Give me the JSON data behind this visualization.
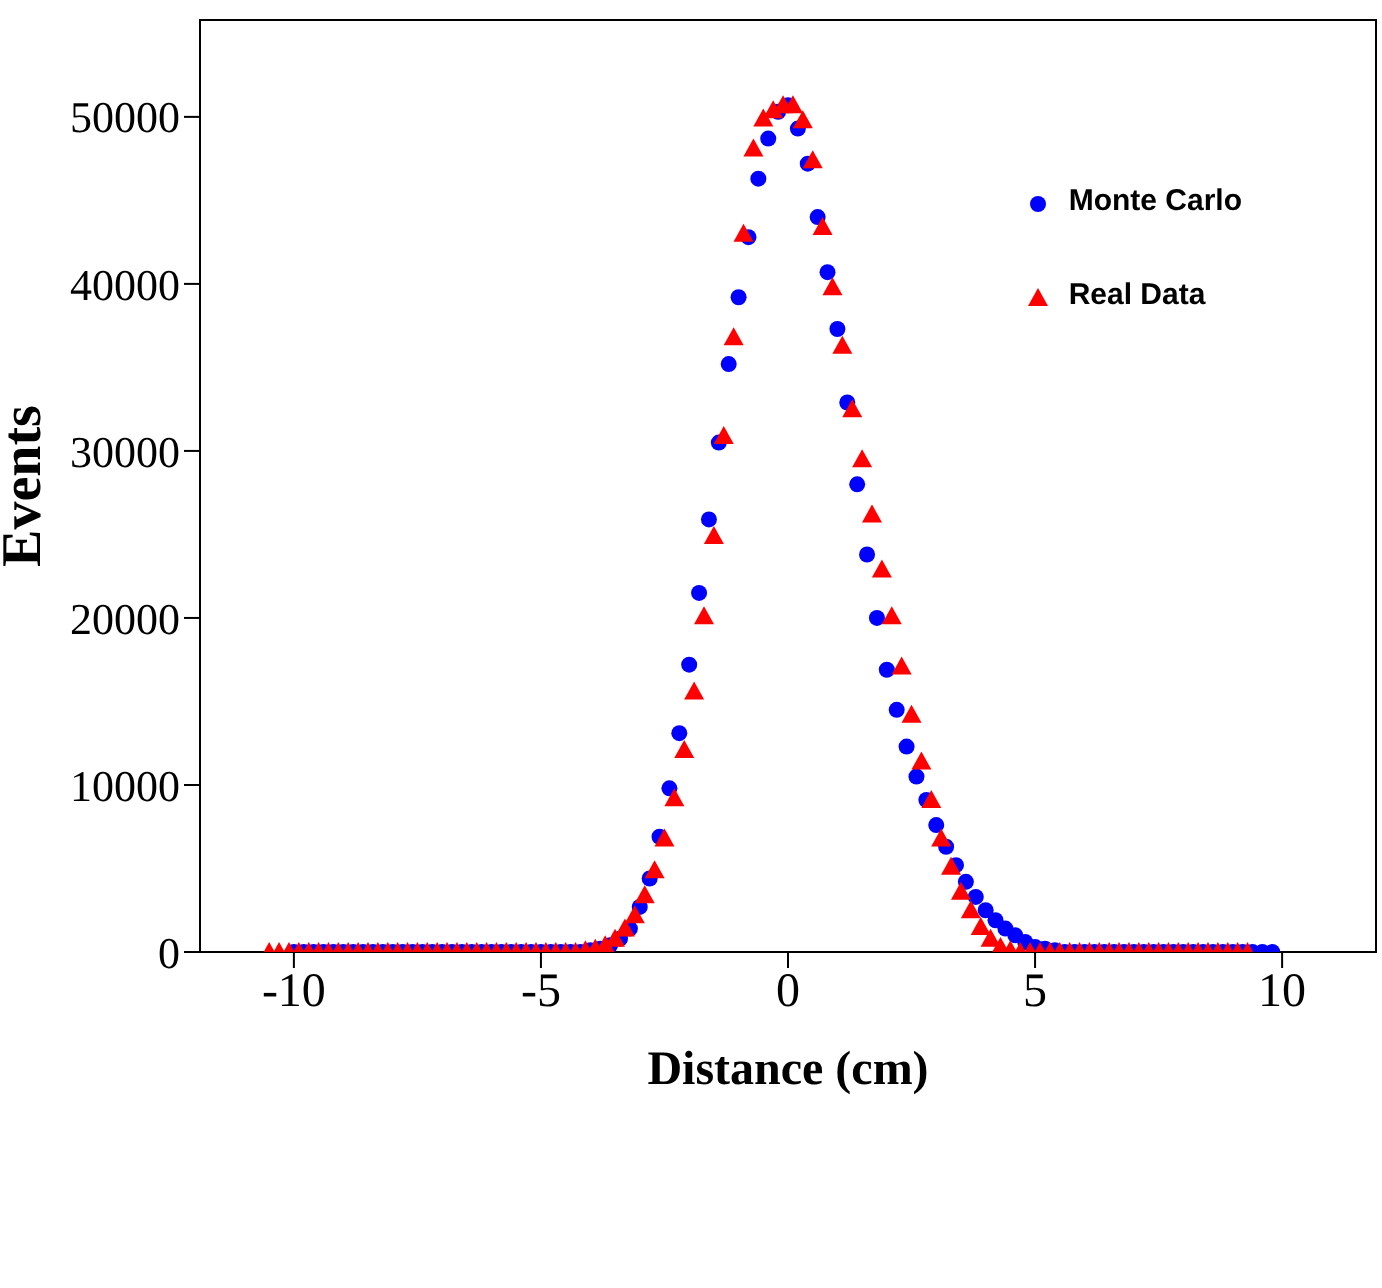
{
  "chart_data": {
    "type": "scatter",
    "xlabel": "Distance  (cm)",
    "ylabel": "Events",
    "xlim": [
      -11.9,
      11.9
    ],
    "xticks": [
      -10,
      -5,
      0,
      5,
      10
    ],
    "ylim": [
      0,
      55800
    ],
    "yticks": [
      0,
      10000,
      20000,
      30000,
      40000,
      50000
    ],
    "grid": false,
    "legend": "top right",
    "series": [
      {
        "name": "Monte Carlo",
        "color": "#0000ff",
        "marker": "circle",
        "x": [
          -10,
          -9.8,
          -9.6,
          -9.4,
          -9.2,
          -9,
          -8.8,
          -8.6,
          -8.4,
          -8.2,
          -8,
          -7.8,
          -7.6,
          -7.4,
          -7.2,
          -7,
          -6.8,
          -6.6,
          -6.4,
          -6.2,
          -6,
          -5.8,
          -5.6,
          -5.4,
          -5.2,
          -5,
          -4.8,
          -4.6,
          -4.4,
          -4.2,
          -4,
          -3.8,
          -3.6,
          -3.4,
          -3.2,
          -3,
          -2.8,
          -2.6,
          -2.4,
          -2.2,
          -2,
          -1.8,
          -1.6,
          -1.4,
          -1.2,
          -1,
          -0.8,
          -0.6,
          -0.4,
          -0.2,
          0,
          0.2,
          0.4,
          0.6,
          0.8,
          1,
          1.2,
          1.4,
          1.6,
          1.8,
          2,
          2.2,
          2.4,
          2.6,
          2.8,
          3,
          3.2,
          3.4,
          3.6,
          3.8,
          4,
          4.2,
          4.4,
          4.6,
          4.8,
          5,
          5.2,
          5.4,
          5.6,
          5.8,
          6,
          6.2,
          6.4,
          6.6,
          6.8,
          7,
          7.2,
          7.4,
          7.6,
          7.8,
          8,
          8.2,
          8.4,
          8.6,
          8.8,
          9,
          9.2,
          9.4,
          9.6,
          9.8
        ],
        "values": [
          0,
          0,
          0,
          0,
          0,
          0,
          0,
          0,
          0,
          0,
          0,
          0,
          0,
          0,
          0,
          0,
          0,
          0,
          0,
          0,
          0,
          0,
          0,
          0,
          0,
          0,
          0,
          0,
          0,
          0,
          100,
          200,
          400,
          800,
          1400,
          2700,
          4400,
          6900,
          9800,
          13100,
          17200,
          21500,
          25900,
          30500,
          35200,
          39200,
          42800,
          46300,
          48700,
          50300,
          50700,
          49300,
          47200,
          44000,
          40700,
          37300,
          32900,
          28000,
          23800,
          20000,
          16900,
          14500,
          12300,
          10500,
          9100,
          7600,
          6300,
          5200,
          4200,
          3300,
          2500,
          1900,
          1400,
          1000,
          600,
          300,
          200,
          100,
          0,
          0,
          0,
          0,
          0,
          0,
          0,
          0,
          0,
          0,
          0,
          0,
          0,
          0,
          0,
          0,
          0,
          0,
          0,
          0,
          0,
          0
        ]
      },
      {
        "name": "Real Data",
        "color": "#ff0000",
        "marker": "triangle",
        "x": [
          -10.5,
          -10.3,
          -10.1,
          -9.9,
          -9.7,
          -9.5,
          -9.3,
          -9.1,
          -8.9,
          -8.7,
          -8.5,
          -8.3,
          -8.1,
          -7.9,
          -7.7,
          -7.5,
          -7.3,
          -7.1,
          -6.9,
          -6.7,
          -6.5,
          -6.3,
          -6.1,
          -5.9,
          -5.7,
          -5.5,
          -5.3,
          -5.1,
          -4.9,
          -4.7,
          -4.5,
          -4.3,
          -4.1,
          -3.9,
          -3.7,
          -3.5,
          -3.3,
          -3.1,
          -2.9,
          -2.7,
          -2.5,
          -2.3,
          -2.1,
          -1.9,
          -1.7,
          -1.5,
          -1.3,
          -1.1,
          -0.9,
          -0.7,
          -0.5,
          -0.3,
          -0.1,
          0.1,
          0.3,
          0.5,
          0.7,
          0.9,
          1.1,
          1.3,
          1.5,
          1.7,
          1.9,
          2.1,
          2.3,
          2.5,
          2.7,
          2.9,
          3.1,
          3.3,
          3.5,
          3.7,
          3.9,
          4.1,
          4.3,
          4.5,
          4.7,
          4.9,
          5.1,
          5.3,
          5.5,
          5.7,
          5.9,
          6.1,
          6.3,
          6.5,
          6.7,
          6.9,
          7.1,
          7.3,
          7.5,
          7.7,
          7.9,
          8.1,
          8.3,
          8.5,
          8.7,
          8.9,
          9.1,
          9.3
        ],
        "values": [
          0,
          0,
          0,
          0,
          0,
          0,
          0,
          0,
          0,
          0,
          0,
          0,
          0,
          0,
          0,
          0,
          0,
          0,
          0,
          0,
          0,
          0,
          0,
          0,
          0,
          0,
          0,
          0,
          0,
          0,
          0,
          0,
          100,
          200,
          400,
          800,
          1400,
          2200,
          3400,
          4900,
          6800,
          9200,
          12100,
          15600,
          20100,
          24900,
          30900,
          36800,
          43000,
          48100,
          49900,
          50400,
          50700,
          50700,
          49800,
          47400,
          43400,
          39800,
          36300,
          32500,
          29500,
          26200,
          22900,
          20100,
          17100,
          14200,
          11400,
          9100,
          6800,
          5100,
          3600,
          2500,
          1500,
          800,
          300,
          100,
          0,
          0,
          0,
          0,
          0,
          0,
          0,
          0,
          0,
          0,
          0,
          0,
          0,
          0,
          0,
          0,
          0,
          0,
          0,
          0,
          0,
          0,
          0,
          0
        ]
      }
    ]
  }
}
